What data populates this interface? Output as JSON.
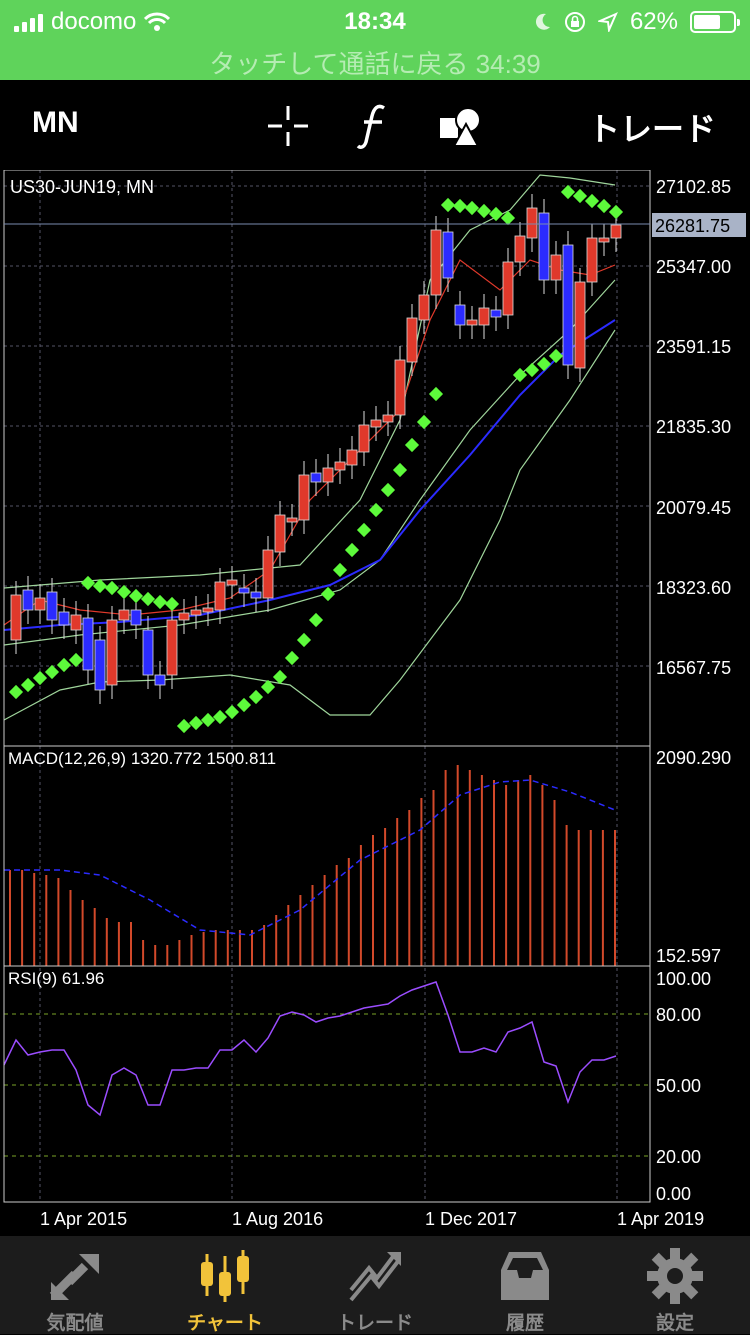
{
  "status_bar": {
    "carrier": "docomo",
    "time": "18:34",
    "battery": "62%",
    "battery_level": 0.62,
    "call_banner": "タッチして通話に戻る 34:39"
  },
  "toolbar": {
    "timeframe": "MN",
    "crosshair_icon": "crosshair-icon",
    "indicator_icon": "function-icon",
    "objects_icon": "shapes-icon",
    "trade_label": "トレード"
  },
  "chart": {
    "symbol_label": "US30-JUN19, MN",
    "current_price": "26281.75",
    "price_ticks": [
      "27102.85",
      "25347.00",
      "23591.15",
      "21835.30",
      "20079.45",
      "18323.60",
      "16567.75"
    ],
    "macd_label": "MACD(12,26,9) 1320.772 1500.811",
    "macd_ticks": [
      "2090.290",
      "152.597"
    ],
    "rsi_label": "RSI(9) 61.96",
    "rsi_ticks": [
      "100.00",
      "80.00",
      "50.00",
      "20.00",
      "0.00"
    ],
    "date_ticks": [
      "1 Apr 2015",
      "1 Aug 2016",
      "1 Dec 2017",
      "1 Apr 2019"
    ],
    "colors": {
      "bull": "#e0392b",
      "bear": "#2b2bff",
      "sar": "#5dfa3b",
      "macd_hist": "#d2492a",
      "rsi": "#9b4dff",
      "grid": "#556"
    }
  },
  "tab_bar": {
    "tabs": [
      {
        "label": "気配値",
        "icon": "quotes-icon"
      },
      {
        "label": "チャート",
        "icon": "candles-icon",
        "active": true
      },
      {
        "label": "トレード",
        "icon": "trade-icon"
      },
      {
        "label": "履歴",
        "icon": "history-icon"
      },
      {
        "label": "設定",
        "icon": "gear-icon"
      }
    ]
  }
}
